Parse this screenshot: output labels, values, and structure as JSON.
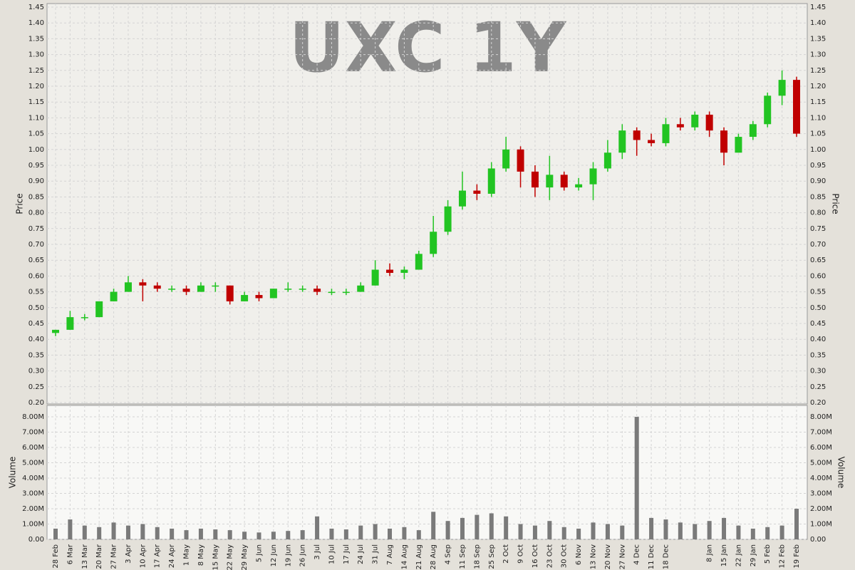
{
  "chart_data": {
    "type": "candlestick",
    "title": "UXC 1Y",
    "y_label": "Price",
    "categories": [
      "28 Feb",
      "6 Mar",
      "13 Mar",
      "20 Mar",
      "27 Mar",
      "3 Apr",
      "10 Apr",
      "17 Apr",
      "24 Apr",
      "1 May",
      "8 May",
      "15 May",
      "22 May",
      "29 May",
      "5 Jun",
      "12 Jun",
      "19 Jun",
      "26 Jun",
      "3 Jul",
      "10 Jul",
      "17 Jul",
      "24 Jul",
      "31 Jul",
      "7 Aug",
      "14 Aug",
      "21 Aug",
      "28 Aug",
      "4 Sep",
      "11 Sep",
      "18 Sep",
      "25 Sep",
      "2 Oct",
      "9 Oct",
      "16 Oct",
      "23 Oct",
      "30 Oct",
      "6 Nov",
      "13 Nov",
      "20 Nov",
      "27 Nov",
      "4 Dec",
      "11 Dec",
      "18 Dec",
      null,
      null,
      "8 Jan",
      "15 Jan",
      "22 Jan",
      "29 Jan",
      "5 Feb",
      "12 Feb",
      "19 Feb"
    ],
    "open": [
      0.42,
      0.43,
      0.47,
      0.47,
      0.52,
      0.55,
      0.58,
      0.57,
      0.56,
      0.56,
      0.55,
      0.57,
      0.57,
      0.52,
      0.54,
      0.53,
      0.56,
      0.56,
      0.56,
      0.55,
      0.55,
      0.55,
      0.57,
      0.62,
      0.61,
      0.62,
      0.67,
      0.74,
      0.82,
      0.87,
      0.86,
      0.94,
      1.0,
      0.93,
      0.88,
      0.92,
      0.88,
      0.89,
      0.94,
      0.99,
      1.06,
      1.03,
      1.02,
      1.08,
      1.07,
      1.11,
      1.06,
      0.99,
      1.04,
      1.08,
      1.17,
      1.22
    ],
    "high": [
      0.43,
      0.49,
      0.48,
      0.52,
      0.56,
      0.6,
      0.59,
      0.58,
      0.57,
      0.57,
      0.58,
      0.58,
      0.57,
      0.55,
      0.55,
      0.56,
      0.58,
      0.57,
      0.57,
      0.56,
      0.56,
      0.58,
      0.65,
      0.64,
      0.63,
      0.68,
      0.79,
      0.84,
      0.93,
      0.89,
      0.96,
      1.04,
      1.01,
      0.95,
      0.98,
      0.93,
      0.91,
      0.96,
      1.03,
      1.08,
      1.07,
      1.05,
      1.1,
      1.1,
      1.12,
      1.12,
      1.07,
      1.05,
      1.09,
      1.18,
      1.25,
      1.23
    ],
    "low": [
      0.41,
      0.43,
      0.46,
      0.47,
      0.52,
      0.55,
      0.52,
      0.55,
      0.55,
      0.54,
      0.55,
      0.55,
      0.51,
      0.52,
      0.52,
      0.53,
      0.55,
      0.55,
      0.54,
      0.54,
      0.54,
      0.55,
      0.57,
      0.6,
      0.59,
      0.62,
      0.66,
      0.73,
      0.81,
      0.84,
      0.85,
      0.93,
      0.88,
      0.85,
      0.84,
      0.87,
      0.87,
      0.84,
      0.93,
      0.97,
      0.98,
      1.01,
      1.01,
      1.06,
      1.06,
      1.04,
      0.95,
      0.99,
      1.03,
      1.07,
      1.14,
      1.04
    ],
    "close": [
      0.43,
      0.47,
      0.47,
      0.52,
      0.55,
      0.58,
      0.57,
      0.56,
      0.56,
      0.55,
      0.57,
      0.57,
      0.52,
      0.54,
      0.53,
      0.56,
      0.56,
      0.56,
      0.55,
      0.55,
      0.55,
      0.57,
      0.62,
      0.61,
      0.62,
      0.67,
      0.74,
      0.82,
      0.87,
      0.86,
      0.94,
      1.0,
      0.93,
      0.88,
      0.92,
      0.88,
      0.89,
      0.94,
      0.99,
      1.06,
      1.03,
      1.02,
      1.08,
      1.07,
      1.11,
      1.06,
      0.99,
      1.04,
      1.08,
      1.17,
      1.22,
      1.05
    ],
    "up_color": "#22c422",
    "down_color": "#c00000",
    "ylim": [
      0.2,
      1.45
    ],
    "yticks": [
      {
        "value": 0.2,
        "label": "0.20"
      },
      {
        "value": 0.25,
        "label": "0.25"
      },
      {
        "value": 0.3,
        "label": "0.30"
      },
      {
        "value": 0.35,
        "label": "0.35"
      },
      {
        "value": 0.4,
        "label": "0.40"
      },
      {
        "value": 0.45,
        "label": "0.45"
      },
      {
        "value": 0.5,
        "label": "0.50"
      },
      {
        "value": 0.55,
        "label": "0.55"
      },
      {
        "value": 0.6,
        "label": "0.60"
      },
      {
        "value": 0.65,
        "label": "0.65"
      },
      {
        "value": 0.7,
        "label": "0.70"
      },
      {
        "value": 0.75,
        "label": "0.75"
      },
      {
        "value": 0.8,
        "label": "0.80"
      },
      {
        "value": 0.85,
        "label": "0.85"
      },
      {
        "value": 0.9,
        "label": "0.90"
      },
      {
        "value": 0.95,
        "label": "0.95"
      },
      {
        "value": 1.0,
        "label": "1.00"
      },
      {
        "value": 1.05,
        "label": "1.05"
      },
      {
        "value": 1.1,
        "label": "1.10"
      },
      {
        "value": 1.15,
        "label": "1.15"
      },
      {
        "value": 1.2,
        "label": "1.20"
      },
      {
        "value": 1.25,
        "label": "1.25"
      },
      {
        "value": 1.3,
        "label": "1.30"
      },
      {
        "value": 1.35,
        "label": "1.35"
      },
      {
        "value": 1.4,
        "label": "1.40"
      },
      {
        "value": 1.45,
        "label": "1.45"
      }
    ],
    "grid": true,
    "volume": {
      "y_label": "Volume",
      "color": "#7a7a7a",
      "values": [
        700000,
        1300000,
        900000,
        800000,
        1100000,
        900000,
        1000000,
        800000,
        700000,
        600000,
        700000,
        650000,
        600000,
        500000,
        450000,
        500000,
        550000,
        600000,
        1500000,
        700000,
        650000,
        900000,
        1000000,
        700000,
        800000,
        600000,
        1800000,
        1200000,
        1400000,
        1600000,
        1700000,
        1500000,
        1000000,
        900000,
        1200000,
        800000,
        700000,
        1100000,
        1000000,
        900000,
        8000000,
        1400000,
        1300000,
        1100000,
        1000000,
        1200000,
        1400000,
        900000,
        700000,
        800000,
        900000,
        2000000
      ],
      "ylim": [
        0,
        8700000
      ],
      "yticks": [
        {
          "value": 0,
          "label": "0.00"
        },
        {
          "value": 1000000,
          "label": "1.00M"
        },
        {
          "value": 2000000,
          "label": "2.00M"
        },
        {
          "value": 3000000,
          "label": "3.00M"
        },
        {
          "value": 4000000,
          "label": "4.00M"
        },
        {
          "value": 5000000,
          "label": "5.00M"
        },
        {
          "value": 6000000,
          "label": "6.00M"
        },
        {
          "value": 7000000,
          "label": "7.00M"
        },
        {
          "value": 8000000,
          "label": "8.00M"
        }
      ]
    }
  }
}
